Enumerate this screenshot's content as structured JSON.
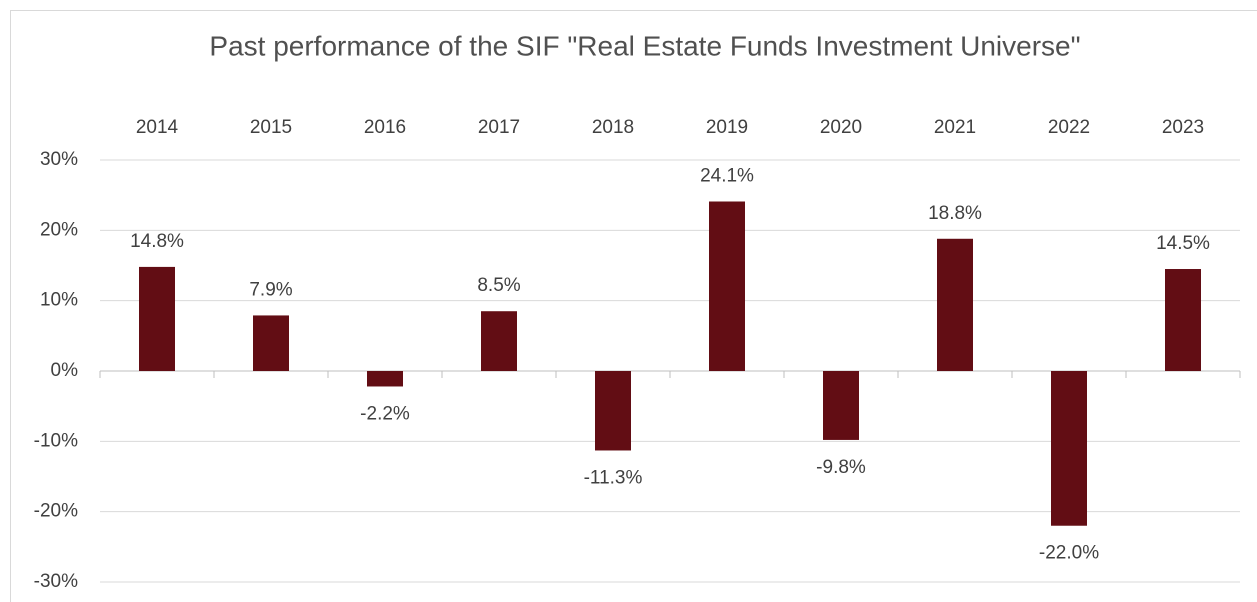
{
  "chart_data": {
    "type": "bar",
    "title": "Past performance of the SIF \"Real Estate Funds Investment Universe\"",
    "categories": [
      "2014",
      "2015",
      "2016",
      "2017",
      "2018",
      "2019",
      "2020",
      "2021",
      "2022",
      "2023"
    ],
    "values": [
      14.8,
      7.9,
      -2.2,
      8.5,
      -11.3,
      24.1,
      -9.8,
      18.8,
      -22.0,
      14.5
    ],
    "value_labels": [
      "14.8%",
      "7.9%",
      "-2.2%",
      "8.5%",
      "-11.3%",
      "24.1%",
      "-9.8%",
      "18.8%",
      "-22.0%",
      "14.5%"
    ],
    "color": "#620d14",
    "ylim": [
      -30,
      30
    ],
    "yticks": [
      {
        "value": -30,
        "label": "-30%"
      },
      {
        "value": -20,
        "label": "-20%"
      },
      {
        "value": -10,
        "label": "-10%"
      },
      {
        "value": 0,
        "label": "0%"
      },
      {
        "value": 10,
        "label": "10%"
      },
      {
        "value": 20,
        "label": "20%"
      },
      {
        "value": 30,
        "label": "30%"
      }
    ],
    "grid": true
  }
}
